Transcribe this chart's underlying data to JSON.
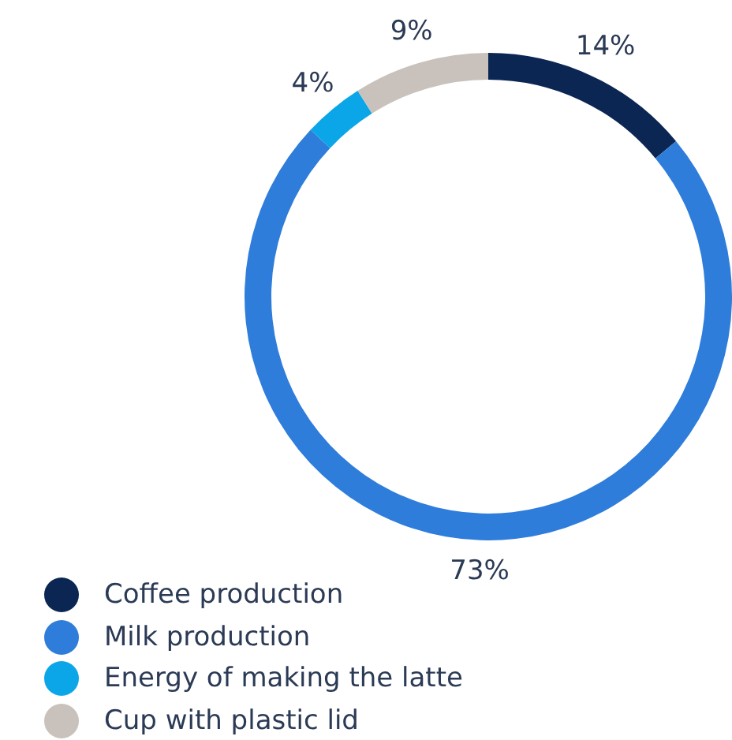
{
  "chart_data": {
    "type": "donut",
    "categories": [
      "Coffee production",
      "Milk production",
      "Energy of making the latte",
      "Cup with plastic lid"
    ],
    "values": [
      14,
      73,
      4,
      9
    ],
    "colors": [
      "#0b2653",
      "#2f7ddb",
      "#0ba6e8",
      "#c9c2bc"
    ],
    "value_labels": [
      "14%",
      "73%",
      "4%",
      "9%"
    ],
    "legend": "bottom left"
  }
}
